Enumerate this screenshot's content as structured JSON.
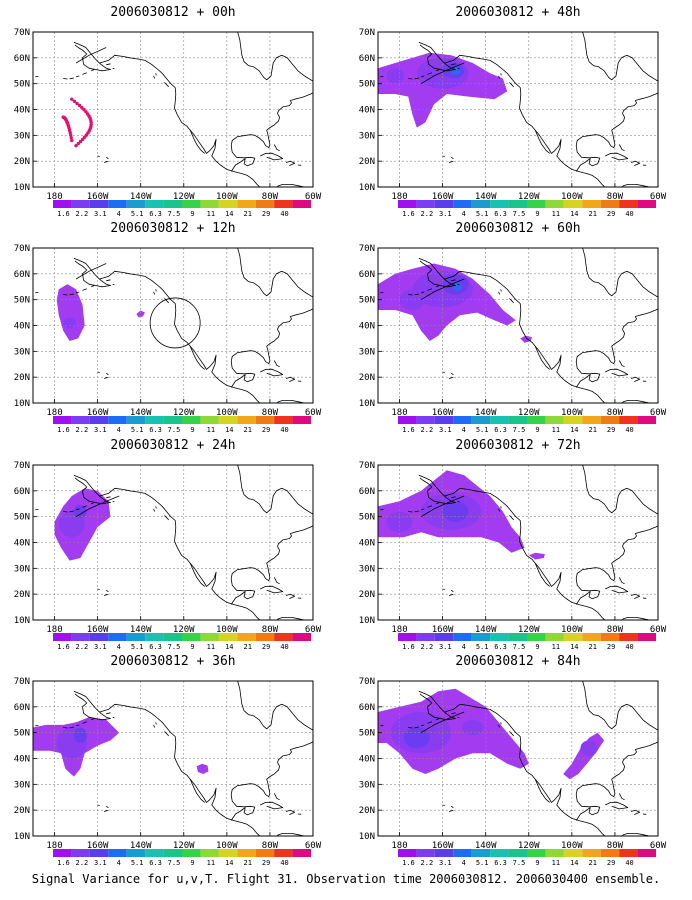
{
  "caption": "Signal Variance for u,v,T. Flight 31. Observation time 2006030812. 2006030400 ensemble.",
  "colors": {
    "levels": [
      "#a00ff0",
      "#7a3df5",
      "#5a3df0",
      "#1e6bf5",
      "#1a9ccf",
      "#18c2b0",
      "#18c68c",
      "#38d24a",
      "#8ed838",
      "#d6d420",
      "#f0a818",
      "#f07a14",
      "#f0321e",
      "#e00a80"
    ],
    "contour_fill_main": "#a33cf0",
    "contour_fill_mid": "#8a3cf0",
    "contour_fill_deep": "#6c3cf0",
    "contour_fill_peak": "#2a68f5",
    "obs_points": "#e0106c"
  },
  "colorbar_labels": [
    "1.6",
    "2.2",
    "3.1",
    "4",
    "5.1",
    "6.3",
    "7.5",
    "9",
    "11",
    "14",
    "21",
    "29",
    "40"
  ],
  "xticks": [
    "180",
    "160W",
    "140W",
    "120W",
    "100W",
    "80W",
    "60W"
  ],
  "yticks": [
    "70N",
    "60N",
    "50N",
    "40N",
    "30N",
    "20N",
    "10N"
  ],
  "panels": [
    {
      "title": "2006030812 + 00h"
    },
    {
      "title": "2006030812 + 48h"
    },
    {
      "title": "2006030812 + 12h"
    },
    {
      "title": "2006030812 + 60h"
    },
    {
      "title": "2006030812 + 24h"
    },
    {
      "title": "2006030812 + 72h"
    },
    {
      "title": "2006030812 + 36h"
    },
    {
      "title": "2006030812 + 84h"
    }
  ]
}
